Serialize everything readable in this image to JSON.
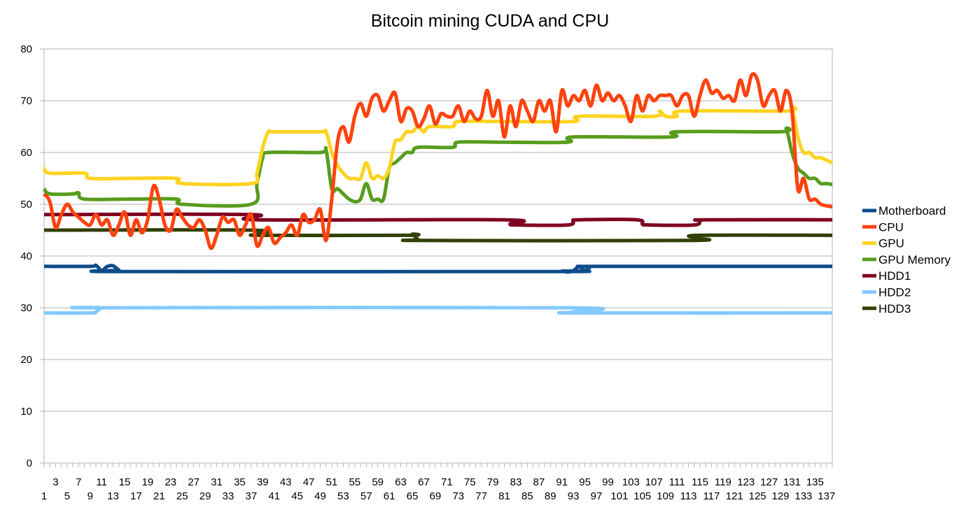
{
  "chart_data": {
    "type": "line",
    "title": "Bitcoin mining CUDA and CPU",
    "xlabel": "",
    "ylabel": "",
    "ylim": [
      0,
      80
    ],
    "yticks": [
      0,
      10,
      20,
      30,
      40,
      50,
      60,
      70,
      80
    ],
    "x_range": [
      1,
      138
    ],
    "grid": true,
    "legend_position": "right",
    "series": [
      {
        "name": "Motherboard",
        "color": "#0e4c8a",
        "points": [
          [
            1,
            38
          ],
          [
            9,
            38
          ],
          [
            10,
            38.2
          ],
          [
            11,
            37.2
          ],
          [
            12,
            38
          ],
          [
            13,
            38.1
          ],
          [
            14,
            37.3
          ],
          [
            15,
            37
          ],
          [
            90,
            37
          ],
          [
            91,
            37.1
          ],
          [
            92,
            36.9
          ],
          [
            93,
            37.2
          ],
          [
            94,
            37.9
          ],
          [
            95,
            37.2
          ],
          [
            96,
            37.9
          ],
          [
            97,
            38
          ],
          [
            138,
            38
          ]
        ]
      },
      {
        "name": "CPU",
        "color": "#ff420e",
        "points": [
          [
            1,
            52
          ],
          [
            2,
            50.5
          ],
          [
            3,
            45.5
          ],
          [
            4,
            48
          ],
          [
            5,
            50
          ],
          [
            6,
            48.5
          ],
          [
            7,
            47.5
          ],
          [
            8,
            46.5
          ],
          [
            9,
            46
          ],
          [
            10,
            48
          ],
          [
            11,
            46
          ],
          [
            12,
            47
          ],
          [
            13,
            44
          ],
          [
            14,
            46
          ],
          [
            15,
            48.5
          ],
          [
            16,
            44
          ],
          [
            17,
            47
          ],
          [
            18,
            44.5
          ],
          [
            19,
            47
          ],
          [
            20,
            53.5
          ],
          [
            21,
            51
          ],
          [
            22,
            46
          ],
          [
            23,
            45
          ],
          [
            24,
            49
          ],
          [
            25,
            47.5
          ],
          [
            26,
            46
          ],
          [
            27,
            45.5
          ],
          [
            28,
            47
          ],
          [
            29,
            45
          ],
          [
            30,
            41.5
          ],
          [
            31,
            44
          ],
          [
            32,
            47.5
          ],
          [
            33,
            46.5
          ],
          [
            34,
            47
          ],
          [
            35,
            44
          ],
          [
            36,
            46
          ],
          [
            37,
            48
          ],
          [
            38,
            42
          ],
          [
            39,
            44
          ],
          [
            40,
            45.5
          ],
          [
            41,
            42.5
          ],
          [
            42,
            43.5
          ],
          [
            43,
            44.5
          ],
          [
            44,
            46
          ],
          [
            45,
            44
          ],
          [
            46,
            48
          ],
          [
            47,
            46.5
          ],
          [
            48,
            47
          ],
          [
            49,
            49
          ],
          [
            50,
            43
          ],
          [
            51,
            51
          ],
          [
            52,
            62
          ],
          [
            53,
            65
          ],
          [
            54,
            62
          ],
          [
            55,
            67
          ],
          [
            56,
            69.5
          ],
          [
            57,
            67
          ],
          [
            58,
            70.5
          ],
          [
            59,
            71
          ],
          [
            60,
            68
          ],
          [
            61,
            70
          ],
          [
            62,
            71.5
          ],
          [
            63,
            66
          ],
          [
            64,
            68.5
          ],
          [
            65,
            68
          ],
          [
            66,
            65
          ],
          [
            67,
            66.5
          ],
          [
            68,
            69
          ],
          [
            69,
            65.5
          ],
          [
            70,
            67.5
          ],
          [
            71,
            67
          ],
          [
            72,
            67
          ],
          [
            73,
            69
          ],
          [
            74,
            66
          ],
          [
            75,
            68
          ],
          [
            76,
            66.5
          ],
          [
            77,
            67
          ],
          [
            78,
            72
          ],
          [
            79,
            67
          ],
          [
            80,
            70
          ],
          [
            81,
            63
          ],
          [
            82,
            69
          ],
          [
            83,
            65
          ],
          [
            84,
            70
          ],
          [
            85,
            68
          ],
          [
            86,
            66
          ],
          [
            87,
            70
          ],
          [
            88,
            68
          ],
          [
            89,
            70
          ],
          [
            90,
            64
          ],
          [
            91,
            72
          ],
          [
            92,
            69
          ],
          [
            93,
            71
          ],
          [
            94,
            70
          ],
          [
            95,
            72
          ],
          [
            96,
            69
          ],
          [
            97,
            73
          ],
          [
            98,
            70
          ],
          [
            99,
            71.5
          ],
          [
            100,
            70
          ],
          [
            101,
            71
          ],
          [
            102,
            69
          ],
          [
            103,
            66
          ],
          [
            104,
            71
          ],
          [
            105,
            68
          ],
          [
            106,
            71
          ],
          [
            107,
            70
          ],
          [
            108,
            71
          ],
          [
            109,
            71
          ],
          [
            110,
            71
          ],
          [
            111,
            69
          ],
          [
            112,
            71
          ],
          [
            113,
            71
          ],
          [
            114,
            67
          ],
          [
            115,
            71
          ],
          [
            116,
            74
          ],
          [
            117,
            71.5
          ],
          [
            118,
            72
          ],
          [
            119,
            70.5
          ],
          [
            120,
            71
          ],
          [
            121,
            70
          ],
          [
            122,
            74
          ],
          [
            123,
            71
          ],
          [
            124,
            75
          ],
          [
            125,
            74
          ],
          [
            126,
            69
          ],
          [
            127,
            71
          ],
          [
            128,
            72
          ],
          [
            129,
            68
          ],
          [
            130,
            72
          ],
          [
            131,
            68
          ],
          [
            132,
            53
          ],
          [
            133,
            55
          ],
          [
            134,
            51
          ],
          [
            135,
            51
          ],
          [
            136,
            50
          ],
          [
            137,
            49.7
          ],
          [
            138,
            49.5
          ]
        ]
      },
      {
        "name": "GPU",
        "color": "#ffd320",
        "points": [
          [
            1,
            57
          ],
          [
            2,
            56
          ],
          [
            8,
            56
          ],
          [
            9,
            55
          ],
          [
            16,
            55
          ],
          [
            24,
            55
          ],
          [
            25,
            54
          ],
          [
            37,
            54
          ],
          [
            38,
            56
          ],
          [
            39,
            61
          ],
          [
            40,
            64
          ],
          [
            41,
            64
          ],
          [
            49,
            64
          ],
          [
            50,
            64
          ],
          [
            51,
            60
          ],
          [
            52,
            57.5
          ],
          [
            53,
            56
          ],
          [
            54,
            55
          ],
          [
            55,
            55
          ],
          [
            56,
            55
          ],
          [
            57,
            58
          ],
          [
            58,
            55
          ],
          [
            59,
            55.5
          ],
          [
            60,
            55
          ],
          [
            61,
            57
          ],
          [
            62,
            62
          ],
          [
            63,
            62.5
          ],
          [
            64,
            64
          ],
          [
            65,
            64
          ],
          [
            66,
            65
          ],
          [
            67,
            64
          ],
          [
            68,
            65
          ],
          [
            72,
            65
          ],
          [
            73,
            66
          ],
          [
            80,
            66
          ],
          [
            93,
            66
          ],
          [
            94,
            67
          ],
          [
            107,
            67
          ],
          [
            108,
            68
          ],
          [
            109,
            67
          ],
          [
            111,
            67
          ],
          [
            112,
            68
          ],
          [
            130,
            68
          ],
          [
            131,
            68.5
          ],
          [
            132,
            63
          ],
          [
            133,
            60
          ],
          [
            134,
            60
          ],
          [
            135,
            59
          ],
          [
            136,
            59
          ],
          [
            137,
            58.5
          ],
          [
            138,
            58
          ]
        ]
      },
      {
        "name": "GPU Memory",
        "color": "#579d1c",
        "points": [
          [
            1,
            53
          ],
          [
            2,
            52
          ],
          [
            6,
            52
          ],
          [
            7,
            52.2
          ],
          [
            8,
            51
          ],
          [
            16,
            51
          ],
          [
            24,
            51
          ],
          [
            25,
            50
          ],
          [
            37,
            50
          ],
          [
            38,
            54
          ],
          [
            39,
            59
          ],
          [
            40,
            60
          ],
          [
            49,
            60
          ],
          [
            50,
            60.5
          ],
          [
            51,
            53
          ],
          [
            52,
            53
          ],
          [
            53,
            52
          ],
          [
            54,
            51
          ],
          [
            55,
            50.5
          ],
          [
            56,
            51
          ],
          [
            57,
            54
          ],
          [
            58,
            51
          ],
          [
            59,
            51
          ],
          [
            60,
            51
          ],
          [
            61,
            57
          ],
          [
            62,
            58
          ],
          [
            63,
            59
          ],
          [
            64,
            60
          ],
          [
            65,
            60
          ],
          [
            66,
            61
          ],
          [
            72,
            61
          ],
          [
            73,
            62
          ],
          [
            80,
            62
          ],
          [
            92,
            62
          ],
          [
            93,
            63
          ],
          [
            110,
            63
          ],
          [
            111,
            64
          ],
          [
            129,
            64
          ],
          [
            130,
            64.5
          ],
          [
            131,
            60
          ],
          [
            132,
            57
          ],
          [
            133,
            56
          ],
          [
            134,
            55
          ],
          [
            135,
            55
          ],
          [
            136,
            54
          ],
          [
            137,
            54
          ],
          [
            138,
            53.8
          ]
        ]
      },
      {
        "name": "HDD1",
        "color": "#7e0021",
        "points": [
          [
            1,
            48
          ],
          [
            37,
            48
          ],
          [
            38,
            47
          ],
          [
            81,
            47
          ],
          [
            82,
            46.2
          ],
          [
            83,
            46
          ],
          [
            92,
            46
          ],
          [
            93,
            46.8
          ],
          [
            94,
            47
          ],
          [
            104,
            47
          ],
          [
            105,
            46.2
          ],
          [
            106,
            46
          ],
          [
            114,
            46
          ],
          [
            115,
            46.8
          ],
          [
            116,
            47
          ],
          [
            138,
            47
          ]
        ]
      },
      {
        "name": "HDD2",
        "color": "#83caff",
        "points": [
          [
            1,
            29
          ],
          [
            9,
            29
          ],
          [
            10,
            29.2
          ],
          [
            11,
            30
          ],
          [
            12,
            30
          ],
          [
            92,
            30
          ],
          [
            93,
            29.2
          ],
          [
            94,
            29
          ],
          [
            138,
            29
          ]
        ]
      },
      {
        "name": "HDD3",
        "color": "#314004",
        "points": [
          [
            1,
            45
          ],
          [
            37,
            45
          ],
          [
            38,
            44.2
          ],
          [
            39,
            44
          ],
          [
            64,
            44
          ],
          [
            65,
            44.2
          ],
          [
            66,
            43.2
          ],
          [
            67,
            43
          ],
          [
            113,
            43
          ],
          [
            114,
            43.5
          ],
          [
            115,
            44
          ],
          [
            138,
            44
          ]
        ]
      }
    ],
    "x_tick_rows": [
      {
        "start": 3,
        "step": 4,
        "end": 135
      },
      {
        "start": 1,
        "step": 4,
        "end": 137
      }
    ]
  }
}
